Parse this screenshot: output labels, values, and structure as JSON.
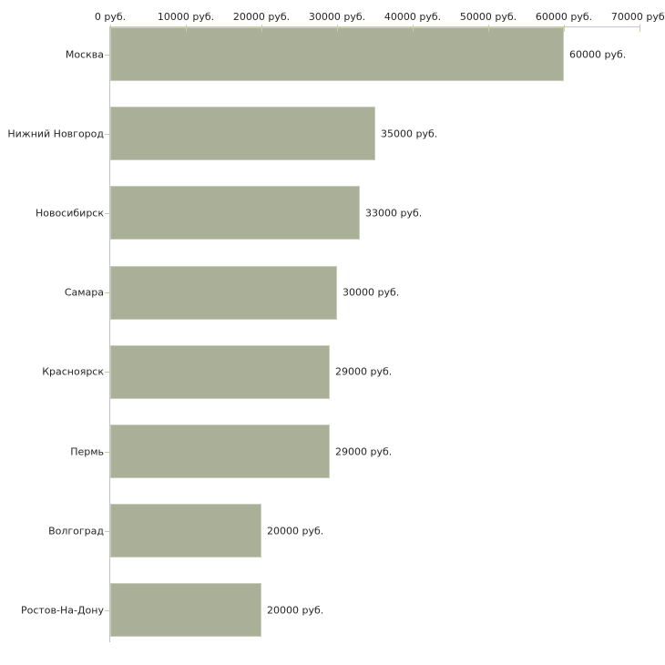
{
  "chart_data": {
    "type": "bar",
    "orientation": "horizontal",
    "title": "",
    "xlabel": "",
    "ylabel": "",
    "xlim": [
      0,
      70000
    ],
    "x_tick_values": [
      0,
      10000,
      20000,
      30000,
      40000,
      50000,
      60000,
      70000
    ],
    "x_tick_labels": [
      "0 руб.",
      "10000 руб.",
      "20000 руб.",
      "30000 руб.",
      "40000 руб.",
      "50000 руб.",
      "60000 руб.",
      "70000 руб."
    ],
    "categories": [
      "Москва",
      "Нижний Новгород",
      "Новосибирск",
      "Самара",
      "Красноярск",
      "Пермь",
      "Волгоград",
      "Ростов-На-Дону"
    ],
    "values": [
      60000,
      35000,
      33000,
      30000,
      29000,
      29000,
      20000,
      20000
    ],
    "bar_labels": [
      "60000 руб.",
      "35000 руб.",
      "33000 руб.",
      "30000 руб.",
      "29000 руб.",
      "29000 руб.",
      "20000 руб.",
      "20000 руб."
    ],
    "unit": "руб.",
    "grid": false,
    "legend": false,
    "axis_tick_position": "top",
    "colors": {
      "bar_fill": "#aab097",
      "bar_border": "#c9cdbb",
      "axis_vertical": "#c1c1c1",
      "axis_horizontal": "#cbcba2",
      "text": "#262626",
      "background": "#ffffff"
    }
  }
}
